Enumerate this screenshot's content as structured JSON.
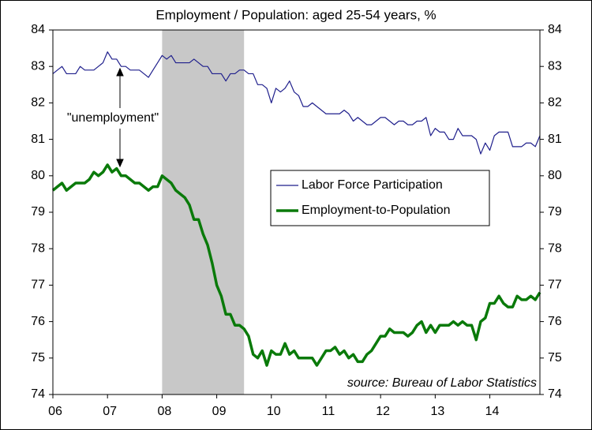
{
  "chart_data": {
    "type": "line",
    "title": "Employment / Population: aged 25-54 years, %",
    "annotation": "\"unemployment\"",
    "source": "source: Bureau of Labor Statistics",
    "recession": [
      2008,
      2009.5
    ],
    "recession_color": "#c8c8c8",
    "x": [
      2006,
      2006.083,
      2006.167,
      2006.25,
      2006.333,
      2006.417,
      2006.5,
      2006.583,
      2006.667,
      2006.75,
      2006.833,
      2006.917,
      2007,
      2007.083,
      2007.167,
      2007.25,
      2007.333,
      2007.417,
      2007.5,
      2007.583,
      2007.667,
      2007.75,
      2007.833,
      2007.917,
      2008,
      2008.083,
      2008.167,
      2008.25,
      2008.333,
      2008.417,
      2008.5,
      2008.583,
      2008.667,
      2008.75,
      2008.833,
      2008.917,
      2009,
      2009.083,
      2009.167,
      2009.25,
      2009.333,
      2009.417,
      2009.5,
      2009.583,
      2009.667,
      2009.75,
      2009.833,
      2009.917,
      2010,
      2010.083,
      2010.167,
      2010.25,
      2010.333,
      2010.417,
      2010.5,
      2010.583,
      2010.667,
      2010.75,
      2010.833,
      2010.917,
      2011,
      2011.083,
      2011.167,
      2011.25,
      2011.333,
      2011.417,
      2011.5,
      2011.583,
      2011.667,
      2011.75,
      2011.833,
      2011.917,
      2012,
      2012.083,
      2012.167,
      2012.25,
      2012.333,
      2012.417,
      2012.5,
      2012.583,
      2012.667,
      2012.75,
      2012.833,
      2012.917,
      2013,
      2013.083,
      2013.167,
      2013.25,
      2013.333,
      2013.417,
      2013.5,
      2013.583,
      2013.667,
      2013.75,
      2013.833,
      2013.917,
      2014,
      2014.083,
      2014.167,
      2014.25,
      2014.333,
      2014.417,
      2014.5,
      2014.583,
      2014.667,
      2014.75,
      2014.833,
      2014.917
    ],
    "series": [
      {
        "name": "Labor Force Participation",
        "color": "#1f1f8c",
        "width": 1.2,
        "values": [
          82.8,
          82.9,
          83.0,
          82.8,
          82.8,
          82.8,
          83.0,
          82.9,
          82.9,
          82.9,
          83.0,
          83.1,
          83.4,
          83.2,
          83.2,
          83.0,
          83.0,
          82.9,
          82.9,
          82.9,
          82.8,
          82.7,
          82.9,
          83.1,
          83.3,
          83.2,
          83.3,
          83.1,
          83.1,
          83.1,
          83.1,
          83.2,
          83.1,
          83.0,
          83.0,
          82.8,
          82.8,
          82.8,
          82.6,
          82.8,
          82.8,
          82.9,
          82.9,
          82.8,
          82.8,
          82.5,
          82.5,
          82.4,
          82.0,
          82.4,
          82.3,
          82.4,
          82.6,
          82.3,
          82.2,
          81.9,
          81.9,
          82.0,
          81.9,
          81.8,
          81.7,
          81.7,
          81.7,
          81.7,
          81.8,
          81.7,
          81.5,
          81.6,
          81.5,
          81.4,
          81.4,
          81.5,
          81.6,
          81.6,
          81.5,
          81.4,
          81.5,
          81.5,
          81.4,
          81.4,
          81.5,
          81.5,
          81.6,
          81.1,
          81.3,
          81.2,
          81.2,
          81.0,
          81.0,
          81.3,
          81.1,
          81.1,
          81.1,
          81.0,
          80.6,
          80.9,
          80.7,
          81.1,
          81.2,
          81.2,
          81.2,
          80.8,
          80.8,
          80.8,
          80.9,
          80.9,
          80.8,
          81.1
        ]
      },
      {
        "name": "Employment-to-Population",
        "color": "#0a7a0a",
        "width": 3.5,
        "values": [
          79.6,
          79.7,
          79.8,
          79.6,
          79.7,
          79.8,
          79.8,
          79.8,
          79.9,
          80.1,
          80.0,
          80.1,
          80.3,
          80.1,
          80.2,
          80.0,
          80.0,
          79.9,
          79.8,
          79.8,
          79.7,
          79.6,
          79.7,
          79.7,
          80.0,
          79.9,
          79.8,
          79.6,
          79.5,
          79.4,
          79.2,
          78.8,
          78.8,
          78.4,
          78.1,
          77.6,
          77.0,
          76.7,
          76.2,
          76.2,
          75.9,
          75.9,
          75.8,
          75.6,
          75.1,
          75.0,
          75.2,
          74.8,
          75.2,
          75.1,
          75.1,
          75.4,
          75.1,
          75.2,
          75.0,
          75.0,
          75.0,
          75.0,
          74.8,
          75.0,
          75.2,
          75.2,
          75.3,
          75.1,
          75.2,
          75.0,
          75.1,
          74.9,
          74.9,
          75.1,
          75.2,
          75.4,
          75.6,
          75.6,
          75.8,
          75.7,
          75.7,
          75.7,
          75.6,
          75.7,
          75.9,
          76.0,
          75.7,
          75.9,
          75.7,
          75.9,
          75.9,
          75.9,
          76.0,
          75.9,
          76.0,
          75.9,
          75.9,
          75.5,
          76.0,
          76.1,
          76.5,
          76.5,
          76.7,
          76.5,
          76.4,
          76.4,
          76.7,
          76.6,
          76.6,
          76.7,
          76.6,
          76.8
        ]
      }
    ],
    "xlim": [
      2006,
      2014.917
    ],
    "xticks": [
      {
        "value": 2006,
        "label": "06"
      },
      {
        "value": 2007,
        "label": "07"
      },
      {
        "value": 2008,
        "label": "08"
      },
      {
        "value": 2009,
        "label": "09"
      },
      {
        "value": 2010,
        "label": "10"
      },
      {
        "value": 2011,
        "label": "11"
      },
      {
        "value": 2012,
        "label": "12"
      },
      {
        "value": 2013,
        "label": "13"
      },
      {
        "value": 2014,
        "label": "14"
      }
    ],
    "ylim": [
      74,
      84
    ],
    "yticks": [
      74,
      75,
      76,
      77,
      78,
      79,
      80,
      81,
      82,
      83,
      84
    ],
    "y2lim": [
      74,
      84
    ],
    "y2ticks": [
      74,
      75,
      76,
      77,
      78,
      79,
      80,
      81,
      82,
      83,
      84
    ],
    "grid": false
  }
}
